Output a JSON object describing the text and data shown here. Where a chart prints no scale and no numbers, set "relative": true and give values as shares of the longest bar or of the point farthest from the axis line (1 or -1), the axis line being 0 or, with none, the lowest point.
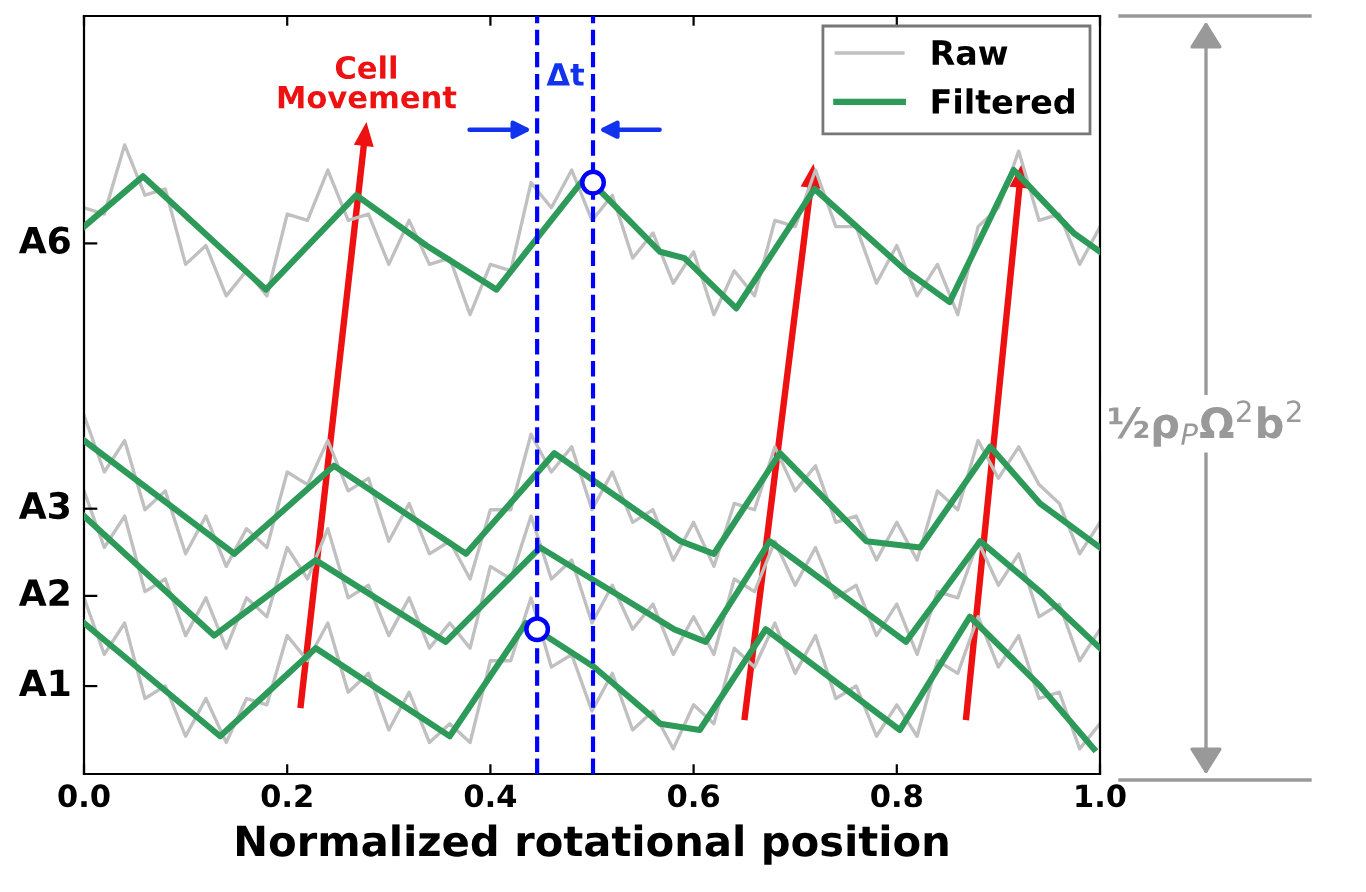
{
  "chart_data": {
    "type": "line",
    "relative": true,
    "xlabel": "Normalized rotational position",
    "xlim": [
      0,
      1
    ],
    "xticks": [
      {
        "value": 0,
        "label": "0.0"
      },
      {
        "value": 0.2,
        "label": "0.2"
      },
      {
        "value": 0.4,
        "label": "0.4"
      },
      {
        "value": 0.6,
        "label": "0.6"
      },
      {
        "value": 0.8,
        "label": "0.8"
      },
      {
        "value": 1,
        "label": "1.0"
      }
    ],
    "grid": false,
    "legend": "top right",
    "annotations": [
      "Cell Movement",
      "Δt",
      "½ρ$_{P}$Ω$^{2}$b$^{2}$",
      "A6",
      "A3",
      "A2",
      "A1"
    ],
    "ref_lines": [
      {
        "axis": "x",
        "value": 0.446,
        "color": "#0000ff",
        "line_style": "dashed"
      },
      {
        "axis": "x",
        "value": 0.501,
        "color": "#0000ff",
        "line_style": "dashed"
      }
    ],
    "series": [
      {
        "name": "Raw",
        "color": "#c0c0c0",
        "x": [
          0,
          0.02,
          0.04,
          0.06,
          0.08,
          0.1,
          0.12,
          0.14,
          0.16,
          0.18,
          0.2,
          0.22,
          0.24,
          0.26,
          0.28,
          0.3,
          0.32,
          0.34,
          0.36,
          0.38,
          0.4,
          0.42,
          0.44,
          0.46,
          0.48,
          0.5,
          0.52,
          0.54,
          0.56,
          0.58,
          0.6,
          0.62,
          0.64,
          0.66,
          0.68,
          0.7,
          0.72,
          0.74,
          0.76,
          0.78,
          0.8,
          0.82,
          0.84,
          0.86,
          0.88,
          0.9,
          0.92,
          0.94,
          0.96,
          0.98,
          1.0
        ],
        "values": [
          0.9,
          0.89,
          1.0,
          0.92,
          0.93,
          0.81,
          0.84,
          0.76,
          0.8,
          0.76,
          0.89,
          0.88,
          0.96,
          0.88,
          0.89,
          0.81,
          0.88,
          0.81,
          0.82,
          0.73,
          0.81,
          0.8,
          0.94,
          0.9,
          0.96,
          0.88,
          0.92,
          0.82,
          0.86,
          0.78,
          0.83,
          0.73,
          0.8,
          0.76,
          0.88,
          0.87,
          0.96,
          0.87,
          0.87,
          0.78,
          0.84,
          0.76,
          0.81,
          0.73,
          0.87,
          0.9,
          0.99,
          0.88,
          0.89,
          0.81,
          0.87
        ]
      },
      {
        "color": "#c0c0c0",
        "x": [
          0,
          0.02,
          0.04,
          0.06,
          0.08,
          0.1,
          0.12,
          0.14,
          0.16,
          0.18,
          0.2,
          0.22,
          0.24,
          0.26,
          0.28,
          0.3,
          0.32,
          0.34,
          0.36,
          0.38,
          0.4,
          0.42,
          0.44,
          0.46,
          0.48,
          0.5,
          0.52,
          0.54,
          0.56,
          0.58,
          0.6,
          0.62,
          0.64,
          0.66,
          0.68,
          0.7,
          0.72,
          0.74,
          0.76,
          0.78,
          0.8,
          0.82,
          0.84,
          0.86,
          0.88,
          0.9,
          0.92,
          0.94,
          0.96,
          0.98,
          1.0
        ],
        "values": [
          0.57,
          0.48,
          0.53,
          0.42,
          0.45,
          0.35,
          0.41,
          0.33,
          0.39,
          0.36,
          0.48,
          0.46,
          0.53,
          0.45,
          0.47,
          0.37,
          0.43,
          0.35,
          0.37,
          0.31,
          0.42,
          0.42,
          0.54,
          0.48,
          0.52,
          0.42,
          0.48,
          0.4,
          0.42,
          0.34,
          0.4,
          0.33,
          0.43,
          0.42,
          0.52,
          0.45,
          0.49,
          0.4,
          0.41,
          0.34,
          0.4,
          0.34,
          0.45,
          0.42,
          0.53,
          0.47,
          0.52,
          0.46,
          0.43,
          0.35,
          0.4
        ]
      },
      {
        "color": "#c0c0c0",
        "x": [
          0,
          0.02,
          0.04,
          0.06,
          0.08,
          0.1,
          0.12,
          0.14,
          0.16,
          0.18,
          0.2,
          0.22,
          0.24,
          0.26,
          0.28,
          0.3,
          0.32,
          0.34,
          0.36,
          0.38,
          0.4,
          0.42,
          0.44,
          0.46,
          0.48,
          0.5,
          0.52,
          0.54,
          0.56,
          0.58,
          0.6,
          0.62,
          0.64,
          0.66,
          0.68,
          0.7,
          0.72,
          0.74,
          0.76,
          0.78,
          0.8,
          0.82,
          0.84,
          0.86,
          0.88,
          0.9,
          0.92,
          0.94,
          0.96,
          0.98,
          1.0
        ],
        "values": [
          0.45,
          0.36,
          0.41,
          0.29,
          0.31,
          0.22,
          0.28,
          0.2,
          0.28,
          0.25,
          0.36,
          0.31,
          0.39,
          0.28,
          0.3,
          0.22,
          0.28,
          0.2,
          0.24,
          0.2,
          0.33,
          0.31,
          0.41,
          0.31,
          0.34,
          0.24,
          0.3,
          0.23,
          0.27,
          0.19,
          0.25,
          0.19,
          0.31,
          0.29,
          0.37,
          0.3,
          0.36,
          0.28,
          0.3,
          0.22,
          0.27,
          0.19,
          0.29,
          0.28,
          0.37,
          0.3,
          0.35,
          0.25,
          0.27,
          0.18,
          0.23
        ]
      },
      {
        "color": "#c0c0c0",
        "x": [
          0,
          0.02,
          0.04,
          0.06,
          0.08,
          0.1,
          0.12,
          0.14,
          0.16,
          0.18,
          0.2,
          0.22,
          0.24,
          0.26,
          0.28,
          0.3,
          0.32,
          0.34,
          0.36,
          0.38,
          0.4,
          0.42,
          0.44,
          0.46,
          0.48,
          0.5,
          0.52,
          0.54,
          0.56,
          0.58,
          0.6,
          0.62,
          0.64,
          0.66,
          0.68,
          0.7,
          0.72,
          0.74,
          0.76,
          0.78,
          0.8,
          0.82,
          0.84,
          0.86,
          0.88,
          0.9,
          0.92,
          0.94,
          0.96,
          0.98,
          1.0
        ],
        "values": [
          0.28,
          0.19,
          0.24,
          0.12,
          0.14,
          0.06,
          0.12,
          0.05,
          0.12,
          0.11,
          0.22,
          0.18,
          0.24,
          0.13,
          0.16,
          0.07,
          0.13,
          0.05,
          0.08,
          0.05,
          0.18,
          0.18,
          0.28,
          0.17,
          0.19,
          0.1,
          0.16,
          0.07,
          0.1,
          0.04,
          0.11,
          0.08,
          0.2,
          0.17,
          0.24,
          0.16,
          0.22,
          0.12,
          0.14,
          0.06,
          0.11,
          0.06,
          0.18,
          0.16,
          0.25,
          0.17,
          0.22,
          0.12,
          0.13,
          0.04,
          0.08
        ]
      },
      {
        "name": "Filtered",
        "color": "#2e9a5a",
        "x": [
          0,
          0.058,
          0.179,
          0.268,
          0.337,
          0.406,
          0.494,
          0.567,
          0.591,
          0.642,
          0.719,
          0.809,
          0.852,
          0.915,
          0.974,
          1.0
        ],
        "values": [
          0.87,
          0.95,
          0.77,
          0.92,
          0.84,
          0.77,
          0.95,
          0.83,
          0.82,
          0.74,
          0.93,
          0.8,
          0.75,
          0.96,
          0.86,
          0.83
        ]
      },
      {
        "color": "#2e9a5a",
        "x": [
          0,
          0.148,
          0.246,
          0.376,
          0.463,
          0.587,
          0.62,
          0.685,
          0.77,
          0.823,
          0.892,
          0.941,
          1.0
        ],
        "values": [
          0.53,
          0.35,
          0.49,
          0.35,
          0.51,
          0.37,
          0.35,
          0.51,
          0.37,
          0.36,
          0.52,
          0.43,
          0.36
        ]
      },
      {
        "color": "#2e9a5a",
        "x": [
          0,
          0.128,
          0.228,
          0.356,
          0.449,
          0.581,
          0.612,
          0.675,
          0.809,
          0.882,
          0.941,
          1.0
        ],
        "values": [
          0.41,
          0.22,
          0.34,
          0.21,
          0.36,
          0.23,
          0.21,
          0.37,
          0.21,
          0.37,
          0.29,
          0.2
        ]
      },
      {
        "color": "#2e9a5a",
        "x": [
          0,
          0.134,
          0.228,
          0.36,
          0.435,
          0.502,
          0.567,
          0.606,
          0.671,
          0.803,
          0.872,
          0.941,
          0.994
        ],
        "values": [
          0.24,
          0.06,
          0.2,
          0.06,
          0.24,
          0.17,
          0.08,
          0.07,
          0.23,
          0.07,
          0.25,
          0.14,
          0.04
        ]
      },
      {
        "type": "scatter",
        "marker": "circle",
        "color": "#0000ff",
        "x": [
          0.501,
          0.446
        ],
        "values": [
          0.94,
          0.23
        ]
      }
    ]
  }
}
